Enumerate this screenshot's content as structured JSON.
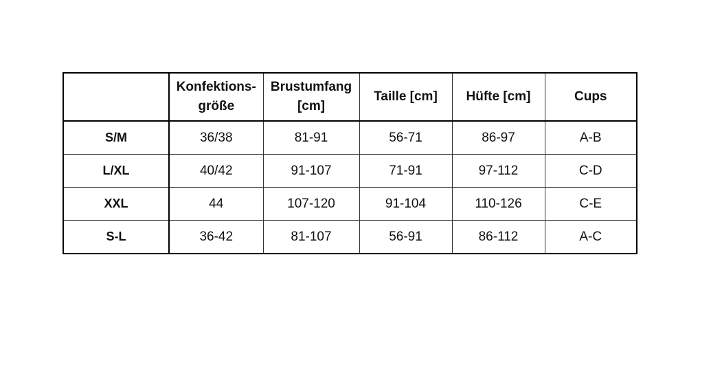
{
  "table": {
    "headers": [
      "",
      "Konfektions-\ngröße",
      "Brustumfang\n[cm]",
      "Taille [cm]",
      "Hüfte [cm]",
      "Cups"
    ],
    "header_lines": [
      [
        ""
      ],
      [
        "Konfektions-",
        "größe"
      ],
      [
        "Brustumfang",
        "[cm]"
      ],
      [
        "Taille [cm]"
      ],
      [
        "Hüfte [cm]"
      ],
      [
        "Cups"
      ]
    ],
    "rows": [
      [
        "S/M",
        "36/38",
        "81-91",
        "56-71",
        "86-97",
        "A-B"
      ],
      [
        "L/XL",
        "40/42",
        "91-107",
        "71-91",
        "97-112",
        "C-D"
      ],
      [
        "XXL",
        "44",
        "107-120",
        "91-104",
        "110-126",
        "C-E"
      ],
      [
        "S-L",
        "36-42",
        "81-107",
        "56-91",
        "86-112",
        "A-C"
      ]
    ]
  }
}
